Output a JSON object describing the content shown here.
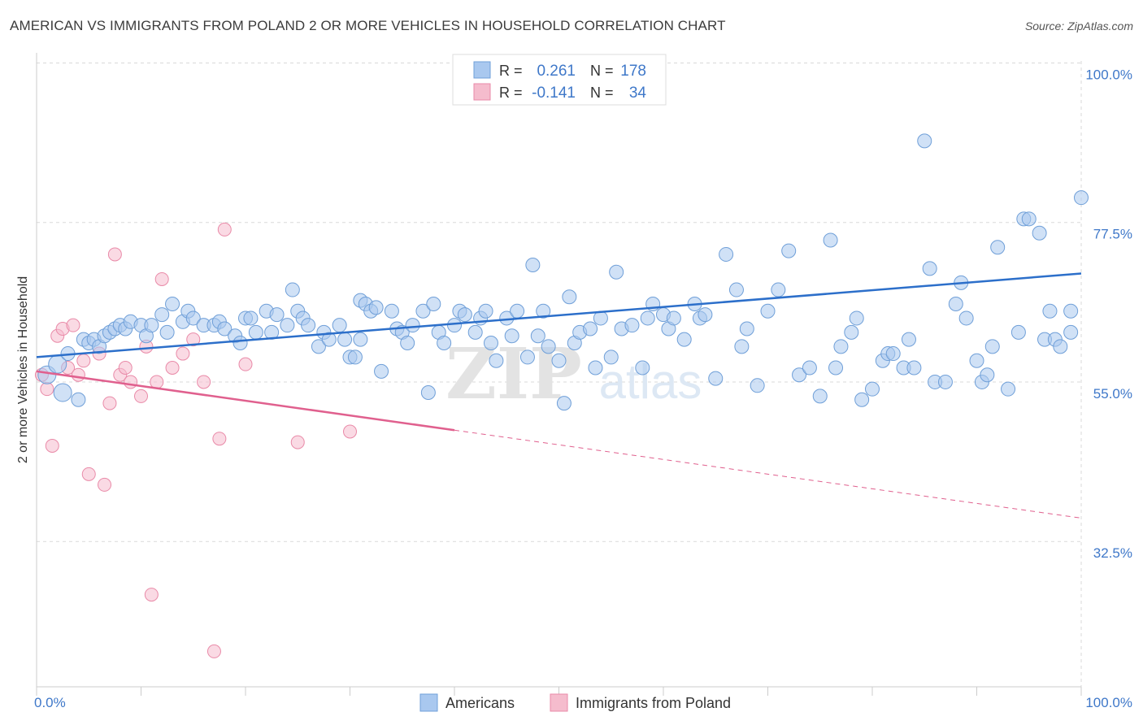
{
  "title": "AMERICAN VS IMMIGRANTS FROM POLAND 2 OR MORE VEHICLES IN HOUSEHOLD CORRELATION CHART",
  "source": "Source: ZipAtlas.com",
  "watermark": {
    "zip": "ZIP",
    "atlas": "atlas"
  },
  "colors": {
    "blue_fill": "#a9c8ef",
    "blue_stroke": "#6f9fd8",
    "blue_line": "#2c6fca",
    "pink_fill": "#f5bccd",
    "pink_stroke": "#e98aa8",
    "pink_line": "#e0608e",
    "axis_label": "#3f78c9",
    "grid": "#d9d9d9"
  },
  "stats_box": {
    "row1": {
      "r_label": "R =",
      "r_value": "0.261",
      "n_label": "N =",
      "n_value": "178"
    },
    "row2": {
      "r_label": "R =",
      "r_value": "-0.141",
      "n_label": "N =",
      "n_value": "34"
    }
  },
  "legend": {
    "americans": "Americans",
    "poland": "Immigrants from Poland"
  },
  "chart_data": {
    "type": "scatter",
    "title": "AMERICAN VS IMMIGRANTS FROM POLAND 2 OR MORE VEHICLES IN HOUSEHOLD CORRELATION CHART",
    "xlabel": "",
    "ylabel": "2 or more Vehicles in Household",
    "xlim": [
      0,
      100
    ],
    "ylim": [
      12,
      102
    ],
    "x_tick_labels": [
      "0.0%",
      "100.0%"
    ],
    "y_ticks": [
      32.5,
      55.0,
      77.5,
      100.0
    ],
    "y_tick_labels": [
      "32.5%",
      "55.0%",
      "77.5%",
      "100.0%"
    ],
    "grid": true,
    "legend_position": "bottom-center",
    "series": [
      {
        "name": "Americans",
        "R": 0.261,
        "N": 178,
        "trend": {
          "x": [
            0,
            100
          ],
          "y": [
            58.5,
            70.3
          ]
        },
        "points": [
          [
            1,
            56
          ],
          [
            2,
            57.5
          ],
          [
            2.5,
            53.5
          ],
          [
            4,
            52.5
          ],
          [
            3,
            59
          ],
          [
            4.5,
            61
          ],
          [
            5,
            60.5
          ],
          [
            5.5,
            61
          ],
          [
            6,
            60
          ],
          [
            6.5,
            61.5
          ],
          [
            7,
            62
          ],
          [
            7.5,
            62.5
          ],
          [
            8,
            63
          ],
          [
            8.5,
            62.5
          ],
          [
            9,
            63.5
          ],
          [
            10,
            63
          ],
          [
            10.5,
            61.5
          ],
          [
            11,
            63
          ],
          [
            12,
            64.5
          ],
          [
            12.5,
            62
          ],
          [
            13,
            66
          ],
          [
            14,
            63.5
          ],
          [
            14.5,
            65
          ],
          [
            15,
            64
          ],
          [
            16,
            63
          ],
          [
            17,
            63
          ],
          [
            17.5,
            63.5
          ],
          [
            18,
            62.5
          ],
          [
            19,
            61.5
          ],
          [
            19.5,
            60.5
          ],
          [
            20,
            64
          ],
          [
            20.5,
            64
          ],
          [
            21,
            62
          ],
          [
            22,
            65
          ],
          [
            22.5,
            62
          ],
          [
            23,
            64.5
          ],
          [
            24,
            63
          ],
          [
            24.5,
            68
          ],
          [
            25,
            65
          ],
          [
            25.5,
            64
          ],
          [
            26,
            63
          ],
          [
            27,
            60
          ],
          [
            27.5,
            62
          ],
          [
            28,
            61
          ],
          [
            29,
            63
          ],
          [
            29.5,
            61
          ],
          [
            30,
            58.5
          ],
          [
            30.5,
            58.5
          ],
          [
            31,
            61
          ],
          [
            31,
            66.5
          ],
          [
            31.5,
            66
          ],
          [
            32,
            65
          ],
          [
            32.5,
            65.5
          ],
          [
            33,
            56.5
          ],
          [
            34,
            65
          ],
          [
            34.5,
            62.5
          ],
          [
            35,
            62
          ],
          [
            35.5,
            60.5
          ],
          [
            36,
            63
          ],
          [
            37,
            65
          ],
          [
            37.5,
            53.5
          ],
          [
            38,
            66
          ],
          [
            38.5,
            62
          ],
          [
            39,
            60.5
          ],
          [
            40,
            63
          ],
          [
            40.5,
            65
          ],
          [
            41,
            64.5
          ],
          [
            42,
            62
          ],
          [
            42.5,
            64
          ],
          [
            43,
            65
          ],
          [
            43.5,
            60.5
          ],
          [
            44,
            58
          ],
          [
            45,
            64
          ],
          [
            45.5,
            61.5
          ],
          [
            46,
            65
          ],
          [
            47,
            58.5
          ],
          [
            47.5,
            71.5
          ],
          [
            48,
            61.5
          ],
          [
            48.5,
            65
          ],
          [
            49,
            60
          ],
          [
            50,
            58
          ],
          [
            50.5,
            52
          ],
          [
            51,
            67
          ],
          [
            51.5,
            60.5
          ],
          [
            52,
            62
          ],
          [
            53,
            62.5
          ],
          [
            53.5,
            57
          ],
          [
            54,
            64
          ],
          [
            55,
            58.5
          ],
          [
            55.5,
            70.5
          ],
          [
            56,
            62.5
          ],
          [
            57,
            63
          ],
          [
            58,
            57
          ],
          [
            58.5,
            64
          ],
          [
            59,
            66
          ],
          [
            60,
            64.5
          ],
          [
            60.5,
            62.5
          ],
          [
            61,
            64
          ],
          [
            62,
            61
          ],
          [
            63,
            66
          ],
          [
            63.5,
            64
          ],
          [
            64,
            64.5
          ],
          [
            65,
            55.5
          ],
          [
            66,
            73
          ],
          [
            67,
            68
          ],
          [
            67.5,
            60
          ],
          [
            68,
            62.5
          ],
          [
            69,
            54.5
          ],
          [
            70,
            65
          ],
          [
            71,
            68
          ],
          [
            72,
            73.5
          ],
          [
            73,
            56
          ],
          [
            74,
            57
          ],
          [
            75,
            53
          ],
          [
            76,
            75
          ],
          [
            76.5,
            57
          ],
          [
            77,
            60
          ],
          [
            78,
            62
          ],
          [
            78.5,
            64
          ],
          [
            79,
            52.5
          ],
          [
            80,
            54
          ],
          [
            81,
            58
          ],
          [
            81.5,
            59
          ],
          [
            82,
            59
          ],
          [
            83,
            57
          ],
          [
            83.5,
            61
          ],
          [
            84,
            57
          ],
          [
            85,
            89
          ],
          [
            85.5,
            71
          ],
          [
            86,
            55
          ],
          [
            87,
            55
          ],
          [
            88,
            66
          ],
          [
            88.5,
            69
          ],
          [
            89,
            64
          ],
          [
            90,
            58
          ],
          [
            90.5,
            55
          ],
          [
            91,
            56
          ],
          [
            91.5,
            60
          ],
          [
            92,
            74
          ],
          [
            93,
            54
          ],
          [
            94,
            62
          ],
          [
            94.5,
            78
          ],
          [
            95,
            78
          ],
          [
            96,
            76
          ],
          [
            96.5,
            61
          ],
          [
            97,
            65
          ],
          [
            97.5,
            61
          ],
          [
            98,
            60
          ],
          [
            99,
            62
          ],
          [
            99,
            65
          ],
          [
            100,
            81
          ]
        ]
      },
      {
        "name": "Immigrants from Poland",
        "R": -0.141,
        "N": 34,
        "trend": {
          "x": [
            0,
            40
          ],
          "y": [
            56.5,
            48.2
          ]
        },
        "trend_extension": {
          "x": [
            40,
            100
          ],
          "y": [
            48.2,
            35.8
          ]
        },
        "points": [
          [
            0.5,
            56
          ],
          [
            1,
            54
          ],
          [
            1.5,
            46
          ],
          [
            2,
            61.5
          ],
          [
            2.5,
            62.5
          ],
          [
            3,
            57
          ],
          [
            3.5,
            63
          ],
          [
            4,
            56
          ],
          [
            4.5,
            58
          ],
          [
            5,
            42
          ],
          [
            6,
            59
          ],
          [
            6.5,
            40.5
          ],
          [
            7,
            52
          ],
          [
            7.5,
            73
          ],
          [
            8,
            56
          ],
          [
            8.5,
            57
          ],
          [
            9,
            55
          ],
          [
            10,
            53
          ],
          [
            10.5,
            60
          ],
          [
            11,
            25
          ],
          [
            11.5,
            55
          ],
          [
            12,
            69.5
          ],
          [
            13,
            57
          ],
          [
            14,
            59
          ],
          [
            15,
            61
          ],
          [
            16,
            55
          ],
          [
            17,
            17
          ],
          [
            17.5,
            47
          ],
          [
            18,
            76.5
          ],
          [
            20,
            57.5
          ],
          [
            25,
            46.5
          ],
          [
            30,
            48
          ]
        ]
      }
    ]
  }
}
